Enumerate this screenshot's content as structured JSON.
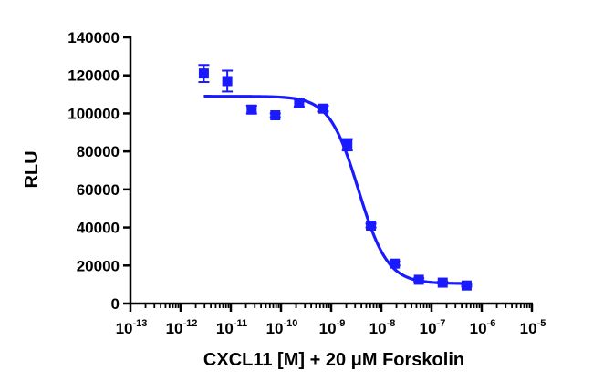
{
  "chart_data": {
    "type": "scatter",
    "xlabel": "CXCL11 [M] + 20 μM Forskolin",
    "ylabel": "RLU",
    "x_scale": "log",
    "xlim": [
      1e-13,
      1e-05
    ],
    "ylim": [
      0,
      140000
    ],
    "y_ticks": [
      0,
      20000,
      40000,
      60000,
      80000,
      100000,
      120000,
      140000
    ],
    "x_ticks": [
      {
        "value": 1e-13,
        "base": "10",
        "exp": "-13"
      },
      {
        "value": 1e-12,
        "base": "10",
        "exp": "-12"
      },
      {
        "value": 1e-11,
        "base": "10",
        "exp": "-11"
      },
      {
        "value": 1e-10,
        "base": "10",
        "exp": "-10"
      },
      {
        "value": 1e-09,
        "base": "10",
        "exp": "-9"
      },
      {
        "value": 1e-08,
        "base": "10",
        "exp": "-8"
      },
      {
        "value": 1e-07,
        "base": "10",
        "exp": "-7"
      },
      {
        "value": 1e-06,
        "base": "10",
        "exp": "-6"
      },
      {
        "value": 1e-05,
        "base": "10",
        "exp": "-5"
      }
    ],
    "grid": false,
    "color": "#1a1aff",
    "series": [
      {
        "points": [
          {
            "x": 2.9e-12,
            "y": 121000,
            "err": 4500
          },
          {
            "x": 8.5e-12,
            "y": 117000,
            "err": 5500
          },
          {
            "x": 2.6e-11,
            "y": 102000,
            "err": 2000
          },
          {
            "x": 7.7e-11,
            "y": 99000,
            "err": 1000
          },
          {
            "x": 2.3e-10,
            "y": 105500,
            "err": 2000
          },
          {
            "x": 7e-10,
            "y": 102500,
            "err": 1500
          },
          {
            "x": 2.1e-09,
            "y": 83500,
            "err": 3000
          },
          {
            "x": 6.2e-09,
            "y": 41000,
            "err": 1000
          },
          {
            "x": 1.85e-08,
            "y": 21000,
            "err": 1000
          },
          {
            "x": 5.6e-08,
            "y": 12500,
            "err": 800
          },
          {
            "x": 1.67e-07,
            "y": 11000,
            "err": 500
          },
          {
            "x": 5e-07,
            "y": 9500,
            "err": 500
          }
        ],
        "fit": {
          "model": "four-parameter logistic",
          "top": 109000,
          "bottom": 10500,
          "ec50": 3.5e-09,
          "hill": 1.5,
          "x_range": [
            2.9e-12,
            5e-07
          ]
        }
      }
    ]
  }
}
